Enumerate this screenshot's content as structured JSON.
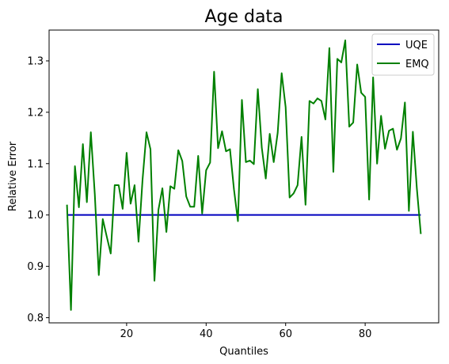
{
  "chart_data": {
    "type": "line",
    "title": "Age data",
    "xlabel": "Quantiles",
    "ylabel": "Relative Error",
    "xlim": [
      0.5,
      98.5
    ],
    "ylim": [
      0.79,
      1.36
    ],
    "xticks": [
      20,
      40,
      60,
      80
    ],
    "yticks": [
      0.8,
      0.9,
      1.0,
      1.1,
      1.2,
      1.3
    ],
    "ytick_labels": [
      "0.8",
      "0.9",
      "1.0",
      "1.1",
      "1.2",
      "1.3"
    ],
    "grid": false,
    "legend_position": "top-right",
    "series": [
      {
        "name": "UQE",
        "color": "#0000bf",
        "x": [
          5,
          94
        ],
        "y": [
          1.0,
          1.0
        ]
      },
      {
        "name": "EMQ",
        "color": "#008000",
        "x": [
          5,
          6,
          7,
          8,
          9,
          10,
          11,
          12,
          13,
          14,
          15,
          16,
          17,
          18,
          19,
          20,
          21,
          22,
          23,
          24,
          25,
          26,
          27,
          28,
          29,
          30,
          31,
          32,
          33,
          34,
          35,
          36,
          37,
          38,
          39,
          40,
          41,
          42,
          43,
          44,
          45,
          46,
          47,
          48,
          49,
          50,
          51,
          52,
          53,
          54,
          55,
          56,
          57,
          58,
          59,
          60,
          61,
          62,
          63,
          64,
          65,
          66,
          67,
          68,
          69,
          70,
          71,
          72,
          73,
          74,
          75,
          76,
          77,
          78,
          79,
          80,
          81,
          82,
          83,
          84,
          85,
          86,
          87,
          88,
          89,
          90,
          91,
          92,
          93,
          94
        ],
        "y": [
          1.02,
          0.815,
          1.095,
          1.015,
          1.138,
          1.025,
          1.161,
          1.04,
          0.883,
          0.992,
          0.958,
          0.925,
          1.058,
          1.058,
          1.012,
          1.121,
          1.022,
          1.058,
          0.948,
          1.068,
          1.161,
          1.128,
          0.872,
          1.01,
          1.052,
          0.967,
          1.056,
          1.051,
          1.126,
          1.105,
          1.036,
          1.016,
          1.016,
          1.115,
          1.003,
          1.087,
          1.102,
          1.279,
          1.13,
          1.163,
          1.124,
          1.128,
          1.05,
          0.988,
          1.224,
          1.103,
          1.106,
          1.099,
          1.245,
          1.131,
          1.071,
          1.158,
          1.103,
          1.16,
          1.276,
          1.21,
          1.034,
          1.042,
          1.058,
          1.152,
          1.02,
          1.222,
          1.217,
          1.227,
          1.222,
          1.186,
          1.325,
          1.084,
          1.304,
          1.297,
          1.34,
          1.172,
          1.18,
          1.293,
          1.238,
          1.23,
          1.03,
          1.268,
          1.1,
          1.193,
          1.129,
          1.164,
          1.168,
          1.127,
          1.149,
          1.219,
          1.008,
          1.162,
          1.052,
          0.963
        ]
      }
    ]
  }
}
